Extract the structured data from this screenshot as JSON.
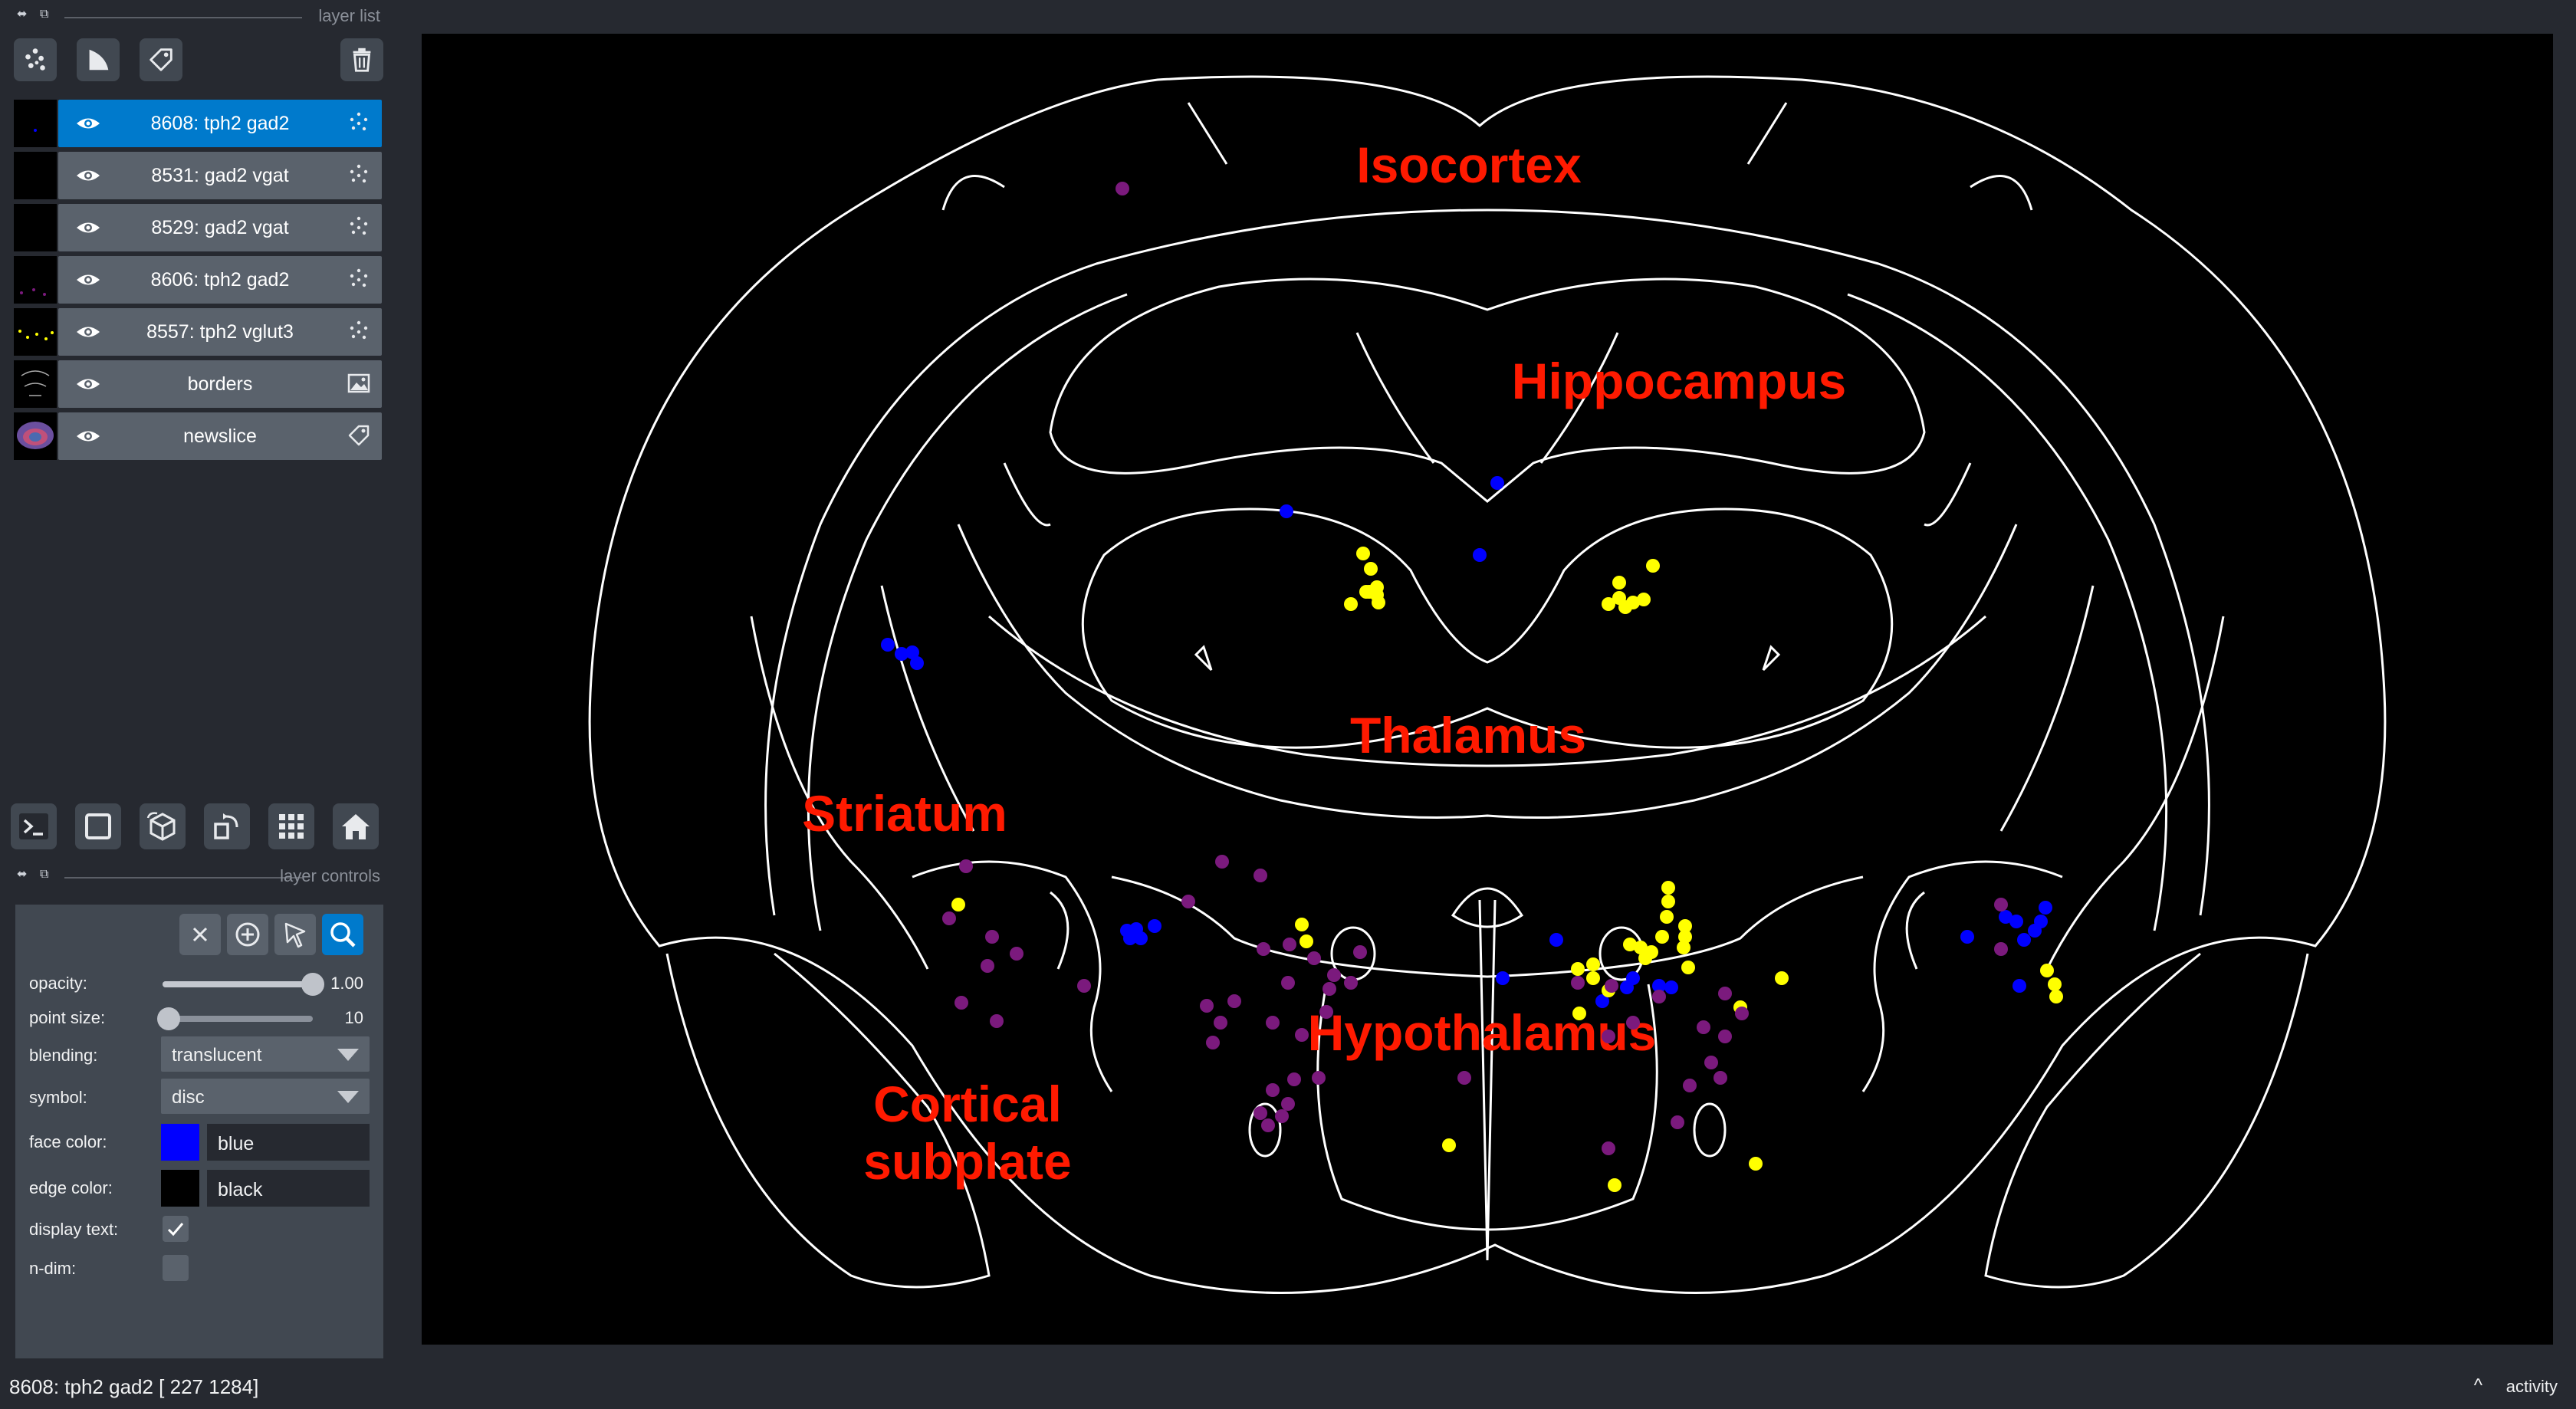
{
  "layer_list": {
    "title": "layer list",
    "layers": [
      {
        "name": "8608: tph2 gad2",
        "type": "points",
        "visible": true,
        "selected": true
      },
      {
        "name": "8531: gad2 vgat",
        "type": "points",
        "visible": true,
        "selected": false
      },
      {
        "name": "8529: gad2 vgat",
        "type": "points",
        "visible": true,
        "selected": false
      },
      {
        "name": "8606: tph2 gad2",
        "type": "points",
        "visible": true,
        "selected": false
      },
      {
        "name": "8557: tph2 vglut3",
        "type": "points",
        "visible": true,
        "selected": false
      },
      {
        "name": "borders",
        "type": "image",
        "visible": true,
        "selected": false
      },
      {
        "name": "newslice",
        "type": "labels",
        "visible": true,
        "selected": false
      }
    ],
    "toolbar_icons": [
      "new-points-icon",
      "new-shapes-icon",
      "new-labels-icon",
      "delete-layer-icon"
    ]
  },
  "viewer_buttons": [
    "console-icon",
    "ndisplay-icon",
    "roll-icon",
    "transpose-icon",
    "grid-icon",
    "home-icon"
  ],
  "layer_controls": {
    "title": "layer controls",
    "opacity": {
      "label": "opacity:",
      "value": "1.00",
      "fraction": 1.0
    },
    "point_size": {
      "label": "point size:",
      "value": "10",
      "fraction": 0.04
    },
    "blending": {
      "label": "blending:",
      "value": "translucent"
    },
    "symbol": {
      "label": "symbol:",
      "value": "disc"
    },
    "face_color": {
      "label": "face color:",
      "value": "blue",
      "hex": "#0000ff"
    },
    "edge_color": {
      "label": "edge color:",
      "value": "black",
      "hex": "#000000"
    },
    "display_text": {
      "label": "display text:",
      "checked": true
    },
    "n_dim": {
      "label": "n-dim:",
      "checked": false
    },
    "mode_icons": [
      "delete-points-icon",
      "add-points-icon",
      "select-points-icon",
      "pan-zoom-icon"
    ],
    "active_mode": "pan-zoom-icon"
  },
  "canvas": {
    "region_labels": {
      "isocortex": "Isocortex",
      "hippocampus": "Hippocampus",
      "thalamus": "Thalamus",
      "striatum": "Striatum",
      "hypothalamus": "Hypothalamus",
      "cortical_subplate_1": "Cortical",
      "cortical_subplate_2": "subplate"
    },
    "label_color": "#ff1a00",
    "point_colors": {
      "blue": "#0000ff",
      "yellow": "#ffff00",
      "purple": "#7b1a7d"
    }
  },
  "status_bar": {
    "text": "8608: tph2 gad2 [ 227 1284]",
    "activity_label": "activity"
  },
  "colors": {
    "panel_bg": "#262930",
    "widget_bg": "#414851",
    "selected_layer": "#007acc",
    "layer_bg": "#5a626c"
  }
}
